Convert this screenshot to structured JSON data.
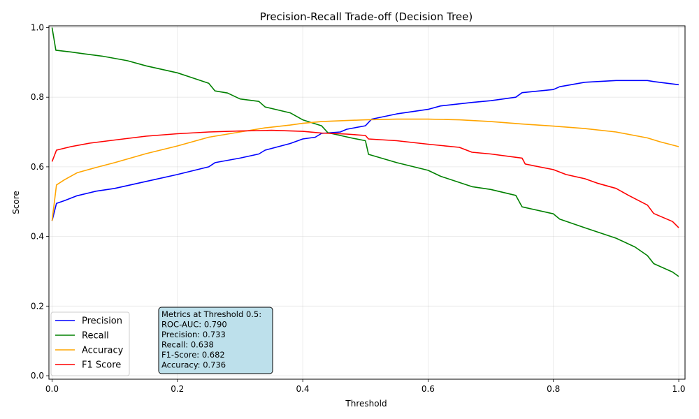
{
  "chart_data": {
    "type": "line",
    "title": "Precision-Recall Trade-off (Decision Tree)",
    "xlabel": "Threshold",
    "ylabel": "Score",
    "xlim": [
      -0.005,
      1.01
    ],
    "ylim": [
      -0.01,
      1.005
    ],
    "xticks": [
      0.0,
      0.2,
      0.4,
      0.6,
      0.8,
      1.0
    ],
    "xtick_labels": [
      "0.0",
      "0.2",
      "0.4",
      "0.6",
      "0.8",
      "1.0"
    ],
    "yticks": [
      0.0,
      0.2,
      0.4,
      0.6,
      0.8,
      1.0
    ],
    "ytick_labels": [
      "0.0",
      "0.2",
      "0.4",
      "0.6",
      "0.8",
      "1.0"
    ],
    "grid": true,
    "legend_placement": "lower-left",
    "series": [
      {
        "name": "Precision",
        "color": "#0000ff",
        "x": [
          0.0,
          0.007,
          0.02,
          0.04,
          0.07,
          0.1,
          0.15,
          0.2,
          0.25,
          0.26,
          0.3,
          0.33,
          0.34,
          0.38,
          0.4,
          0.42,
          0.43,
          0.46,
          0.47,
          0.5,
          0.51,
          0.55,
          0.6,
          0.62,
          0.67,
          0.7,
          0.74,
          0.75,
          0.8,
          0.81,
          0.85,
          0.9,
          0.95,
          0.96,
          1.0
        ],
        "y": [
          0.445,
          0.495,
          0.503,
          0.517,
          0.53,
          0.538,
          0.558,
          0.578,
          0.6,
          0.612,
          0.625,
          0.637,
          0.648,
          0.667,
          0.68,
          0.685,
          0.696,
          0.7,
          0.708,
          0.718,
          0.737,
          0.752,
          0.765,
          0.775,
          0.785,
          0.79,
          0.8,
          0.813,
          0.822,
          0.83,
          0.843,
          0.848,
          0.848,
          0.845,
          0.836
        ]
      },
      {
        "name": "Recall",
        "color": "#008000",
        "x": [
          0.0,
          0.006,
          0.03,
          0.05,
          0.08,
          0.12,
          0.15,
          0.2,
          0.22,
          0.25,
          0.26,
          0.28,
          0.3,
          0.33,
          0.34,
          0.38,
          0.4,
          0.43,
          0.44,
          0.46,
          0.48,
          0.5,
          0.505,
          0.55,
          0.6,
          0.62,
          0.67,
          0.7,
          0.74,
          0.75,
          0.8,
          0.81,
          0.85,
          0.9,
          0.93,
          0.95,
          0.96,
          0.99,
          1.0
        ],
        "y": [
          1.0,
          0.935,
          0.93,
          0.925,
          0.918,
          0.905,
          0.89,
          0.87,
          0.858,
          0.84,
          0.818,
          0.812,
          0.795,
          0.788,
          0.772,
          0.755,
          0.735,
          0.718,
          0.698,
          0.69,
          0.682,
          0.675,
          0.636,
          0.612,
          0.59,
          0.573,
          0.543,
          0.535,
          0.518,
          0.485,
          0.465,
          0.45,
          0.425,
          0.395,
          0.37,
          0.345,
          0.322,
          0.298,
          0.285
        ]
      },
      {
        "name": "Accuracy",
        "color": "#ffa500",
        "x": [
          0.0,
          0.007,
          0.02,
          0.04,
          0.07,
          0.1,
          0.15,
          0.2,
          0.25,
          0.3,
          0.34,
          0.38,
          0.4,
          0.43,
          0.47,
          0.5,
          0.55,
          0.6,
          0.65,
          0.7,
          0.75,
          0.8,
          0.85,
          0.9,
          0.95,
          0.97,
          1.0
        ],
        "y": [
          0.445,
          0.548,
          0.563,
          0.583,
          0.598,
          0.612,
          0.638,
          0.66,
          0.685,
          0.7,
          0.712,
          0.72,
          0.725,
          0.73,
          0.733,
          0.735,
          0.737,
          0.737,
          0.735,
          0.73,
          0.723,
          0.717,
          0.71,
          0.7,
          0.683,
          0.672,
          0.658
        ]
      },
      {
        "name": "F1 Score",
        "color": "#ff0000",
        "x": [
          0.0,
          0.007,
          0.03,
          0.06,
          0.1,
          0.15,
          0.2,
          0.25,
          0.3,
          0.35,
          0.4,
          0.43,
          0.47,
          0.5,
          0.505,
          0.55,
          0.6,
          0.65,
          0.67,
          0.7,
          0.75,
          0.755,
          0.8,
          0.82,
          0.85,
          0.87,
          0.9,
          0.92,
          0.95,
          0.96,
          0.99,
          1.0
        ],
        "y": [
          0.615,
          0.648,
          0.658,
          0.668,
          0.677,
          0.688,
          0.695,
          0.7,
          0.703,
          0.705,
          0.702,
          0.697,
          0.694,
          0.69,
          0.68,
          0.675,
          0.665,
          0.656,
          0.642,
          0.637,
          0.625,
          0.608,
          0.592,
          0.578,
          0.566,
          0.553,
          0.538,
          0.518,
          0.49,
          0.466,
          0.443,
          0.425
        ]
      }
    ],
    "annotation": {
      "lines": [
        "Metrics at Threshold 0.5:",
        "ROC-AUC: 0.790",
        "Precision: 0.733",
        "Recall: 0.638",
        "F1-Score: 0.682",
        "Accuracy: 0.736"
      ],
      "background": "#add8e6"
    }
  }
}
